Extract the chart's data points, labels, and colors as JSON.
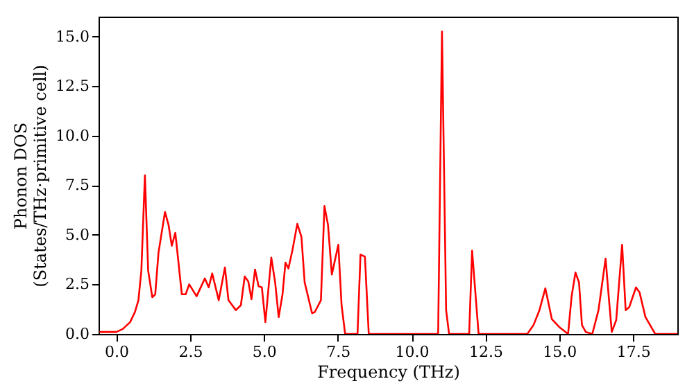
{
  "chart_data": {
    "type": "line",
    "xlabel": "Frequency (THz)",
    "ylabel": "Phonon DOS\n(States/THz·primitive cell)",
    "xlim": [
      -0.6,
      19.0
    ],
    "ylim": [
      0,
      16
    ],
    "xticks": [
      {
        "value": 0,
        "label": "0.0"
      },
      2.5,
      {
        "value": 5,
        "label": "5.0"
      },
      7.5,
      {
        "value": 10,
        "label": "10.0"
      },
      12.5,
      {
        "value": 15,
        "label": "15.0"
      },
      17.5
    ],
    "yticks": [
      {
        "value": 0,
        "label": "0.0"
      },
      2.5,
      {
        "value": 5,
        "label": "5.0"
      },
      7.5,
      {
        "value": 10,
        "label": "10.0"
      },
      12.5,
      {
        "value": 15,
        "label": "15.0"
      }
    ],
    "grid": false,
    "marker": "none",
    "line_style": "solid",
    "series": [
      {
        "color": "#ff0000",
        "x": [
          -0.57,
          0,
          0.22,
          0.47,
          0.63,
          0.75,
          0.85,
          0.97,
          1.08,
          1.22,
          1.32,
          1.43,
          1.65,
          1.77,
          1.88,
          2.0,
          2.22,
          2.35,
          2.47,
          2.72,
          3.0,
          3.13,
          3.25,
          3.47,
          3.68,
          3.8,
          4.05,
          4.22,
          4.35,
          4.47,
          4.58,
          4.7,
          4.82,
          4.93,
          5.05,
          5.25,
          5.38,
          5.5,
          5.63,
          5.73,
          5.83,
          5.97,
          6.13,
          6.27,
          6.38,
          6.63,
          6.72,
          6.93,
          7.05,
          7.17,
          7.3,
          7.52,
          7.63,
          7.75,
          8.17,
          8.27,
          8.42,
          8.55,
          10.9,
          11.03,
          11.17,
          11.27,
          11.95,
          12.05,
          12.27,
          13.92,
          14.13,
          14.33,
          14.53,
          14.75,
          15.0,
          15.3,
          15.42,
          15.55,
          15.67,
          15.77,
          15.9,
          16.12,
          16.33,
          16.57,
          16.67,
          16.78,
          16.93,
          17.13,
          17.25,
          17.37,
          17.6,
          17.72,
          17.92,
          18.25,
          19.0
        ],
        "values": [
          0.1,
          0.1,
          0.25,
          0.6,
          1.1,
          1.7,
          3.2,
          8.0,
          3.2,
          1.85,
          2.0,
          4.1,
          6.15,
          5.5,
          4.45,
          5.1,
          2.0,
          2.0,
          2.5,
          1.9,
          2.8,
          2.35,
          3.05,
          1.7,
          3.35,
          1.7,
          1.2,
          1.45,
          2.9,
          2.65,
          1.75,
          3.25,
          2.4,
          2.35,
          0.6,
          3.85,
          2.6,
          0.85,
          2.0,
          3.6,
          3.3,
          4.25,
          5.55,
          4.9,
          2.6,
          1.05,
          1.1,
          1.7,
          6.45,
          5.5,
          3.0,
          4.5,
          1.45,
          0,
          0,
          4.0,
          3.9,
          0,
          0,
          15.25,
          1.2,
          0,
          0,
          4.2,
          0,
          0,
          0.45,
          1.2,
          2.3,
          0.75,
          0.35,
          0,
          1.9,
          3.1,
          2.6,
          0.45,
          0.1,
          0,
          1.2,
          3.8,
          2.0,
          0.1,
          0.7,
          4.5,
          1.2,
          1.35,
          2.35,
          2.1,
          0.85,
          0,
          0
        ]
      }
    ]
  }
}
